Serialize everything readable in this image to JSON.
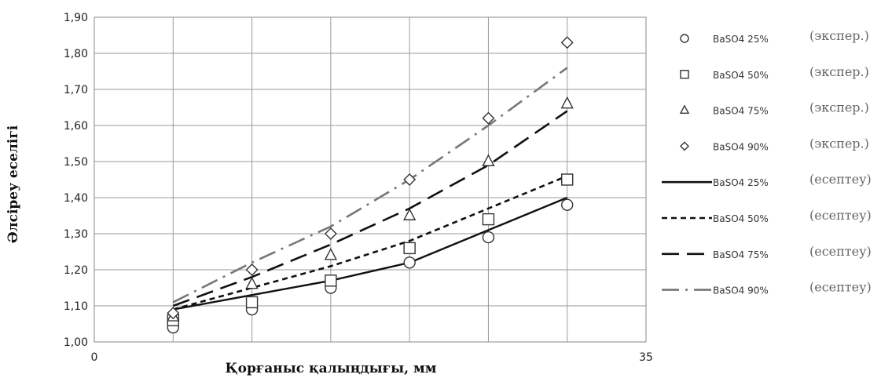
{
  "chart_data": {
    "type": "line",
    "xlabel": "Қорғаныс қалыңдығы, мм",
    "ylabel": "Әлсіреу еселігі",
    "xlim": [
      0,
      35
    ],
    "ylim": [
      1.0,
      1.9
    ],
    "x_tick_labels": [
      "0",
      "35"
    ],
    "y_tick_labels": [
      "1,00",
      "1,10",
      "1,20",
      "1,30",
      "1,40",
      "1,50",
      "1,60",
      "1,70",
      "1,80",
      "1,90"
    ],
    "grid": true,
    "legend_position": "right",
    "series": [
      {
        "name": "BaSO4 25%",
        "tag": "(экспер.)",
        "kind": "points",
        "marker": "circle",
        "x": [
          5,
          10,
          15,
          20,
          25,
          30
        ],
        "y": [
          1.04,
          1.09,
          1.15,
          1.22,
          1.29,
          1.38
        ]
      },
      {
        "name": "BaSO4 50%",
        "tag": "(экспер.)",
        "kind": "points",
        "marker": "square",
        "x": [
          5,
          10,
          15,
          20,
          25,
          30
        ],
        "y": [
          1.06,
          1.11,
          1.17,
          1.26,
          1.34,
          1.45
        ]
      },
      {
        "name": "BaSO4 75%",
        "tag": "(экспер.)",
        "kind": "points",
        "marker": "triangle",
        "x": [
          5,
          10,
          15,
          20,
          25,
          30
        ],
        "y": [
          1.07,
          1.16,
          1.24,
          1.35,
          1.5,
          1.66
        ]
      },
      {
        "name": "BaSO4 90%",
        "tag": "(экспер.)",
        "kind": "points",
        "marker": "diamond",
        "x": [
          5,
          10,
          15,
          20,
          25,
          30
        ],
        "y": [
          1.08,
          1.2,
          1.3,
          1.45,
          1.62,
          1.83
        ]
      },
      {
        "name": "BaSO4 25%",
        "tag": "(есептеу)",
        "kind": "line",
        "dash": "solid",
        "color": "#111111",
        "x": [
          5,
          10,
          15,
          20,
          25,
          30
        ],
        "y": [
          1.09,
          1.13,
          1.17,
          1.22,
          1.31,
          1.4
        ]
      },
      {
        "name": "BaSO4 50%",
        "tag": "(есептеу)",
        "kind": "line",
        "dash": "short",
        "color": "#111111",
        "x": [
          5,
          10,
          15,
          20,
          25,
          30
        ],
        "y": [
          1.09,
          1.15,
          1.21,
          1.28,
          1.37,
          1.46
        ]
      },
      {
        "name": "BaSO4 75%",
        "tag": "(есептеу)",
        "kind": "line",
        "dash": "long",
        "color": "#111111",
        "x": [
          5,
          10,
          15,
          20,
          25,
          30
        ],
        "y": [
          1.1,
          1.18,
          1.27,
          1.37,
          1.49,
          1.64
        ]
      },
      {
        "name": "BaSO4 90%",
        "tag": "(есептеу)",
        "kind": "line",
        "dash": "dashdot",
        "color": "#777777",
        "x": [
          5,
          10,
          15,
          20,
          25,
          30
        ],
        "y": [
          1.11,
          1.22,
          1.32,
          1.45,
          1.6,
          1.76
        ]
      }
    ]
  }
}
